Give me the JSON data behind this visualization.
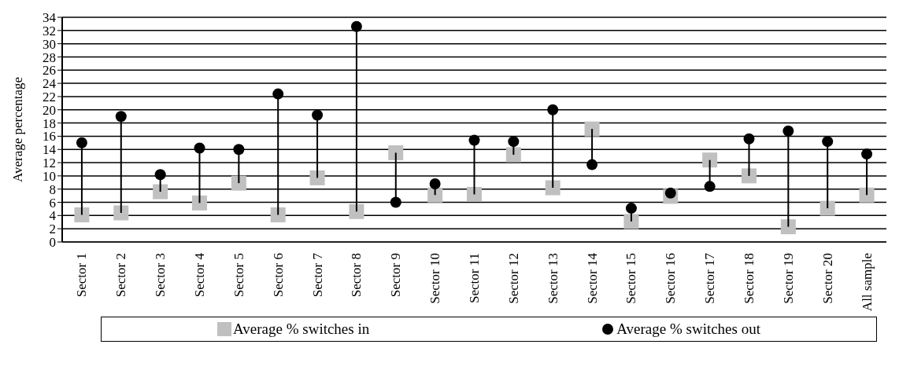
{
  "chart_data": {
    "type": "scatter",
    "ylabel": "Average percentage",
    "categories": [
      "Sector 1",
      "Sector 2",
      "Sector 3",
      "Sector 4",
      "Sector 5",
      "Sector 6",
      "Sector 7",
      "Sector 8",
      "Sector 9",
      "Sector 10",
      "Sector 11",
      "Sector 12",
      "Sector 13",
      "Sector 14",
      "Sector 15",
      "Sector 16",
      "Sector 17",
      "Sector 18",
      "Sector 19",
      "Sector 20",
      "All sample"
    ],
    "series": [
      {
        "name": "Average % switches in",
        "color": "#c0c0c0",
        "marker": "square",
        "values": [
          4.1,
          4.4,
          7.6,
          5.9,
          8.9,
          4.1,
          9.7,
          4.6,
          13.5,
          7.1,
          7.2,
          13.2,
          8.2,
          17.1,
          3.1,
          6.9,
          12.4,
          10.0,
          2.3,
          5.1,
          7.1
        ]
      },
      {
        "name": "Average % switches out",
        "color": "#000000",
        "marker": "circle",
        "values": [
          15.0,
          19.0,
          10.2,
          14.2,
          14.0,
          22.4,
          19.2,
          32.6,
          6.0,
          8.8,
          15.4,
          15.2,
          20.0,
          11.7,
          5.1,
          7.4,
          8.4,
          15.6,
          16.8,
          15.2,
          13.3
        ]
      }
    ],
    "ylim": [
      0,
      34
    ],
    "yticks": [
      0,
      2,
      4,
      6,
      8,
      10,
      12,
      14,
      16,
      18,
      20,
      22,
      24,
      26,
      28,
      30,
      32,
      34
    ],
    "grid": "y",
    "legend": "bottom"
  }
}
